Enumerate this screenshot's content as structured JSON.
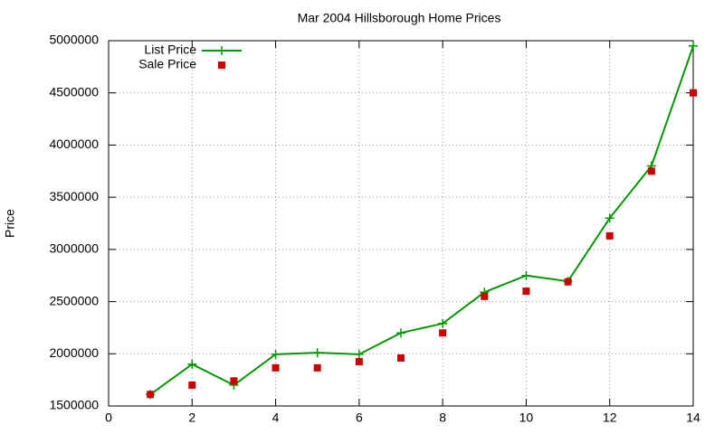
{
  "chart_data": {
    "type": "line",
    "title": "Mar 2004 Hillsborough Home Prices",
    "y_label": "Price",
    "x": [
      1,
      2,
      3,
      4,
      5,
      6,
      7,
      8,
      9,
      10,
      11,
      12,
      13,
      14
    ],
    "series": [
      {
        "name": "List Price",
        "color": "#009900",
        "style": "linespoints",
        "values": [
          1610000,
          1900000,
          1700000,
          1995000,
          2010000,
          1995000,
          2200000,
          2290000,
          2590000,
          2750000,
          2695000,
          3300000,
          3800000,
          4950000
        ]
      },
      {
        "name": "Sale Price",
        "color": "#cc0000",
        "style": "points",
        "values": [
          1610000,
          1700000,
          1740000,
          1865000,
          1865000,
          1925000,
          1960000,
          2200000,
          2550000,
          2600000,
          2690000,
          3130000,
          3750000,
          4500000
        ]
      }
    ],
    "xlim": [
      0,
      14
    ],
    "xticks": [
      0,
      2,
      4,
      6,
      8,
      10,
      12,
      14
    ],
    "ylim": [
      1500000,
      5000000
    ],
    "yticks": [
      1500000,
      2000000,
      2500000,
      3000000,
      3500000,
      4000000,
      4500000,
      5000000
    ],
    "grid": true,
    "legend": "top-left"
  }
}
